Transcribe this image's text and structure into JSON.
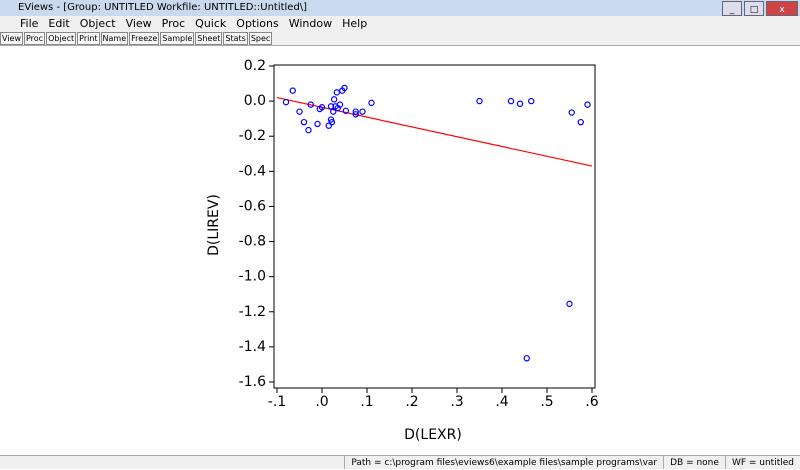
{
  "window": {
    "title": "EViews - [Group: UNTITLED   Workfile: UNTITLED::Untitled\\]"
  },
  "menu": [
    "File",
    "Edit",
    "Object",
    "View",
    "Proc",
    "Quick",
    "Options",
    "Window",
    "Help"
  ],
  "toolbar": [
    "View",
    "Proc",
    "Object",
    "Print",
    "Name",
    "Freeze",
    "Sample",
    "Sheet",
    "Stats",
    "Spec"
  ],
  "status": [
    "Path = c:\\program files\\eviews6\\example files\\sample programs\\var",
    "DB = none",
    "WF = untitled"
  ],
  "chart_data": {
    "type": "scatter",
    "x_label": "D(LEXR)",
    "y_label": "D(LIREV)",
    "xlim": [
      -0.1,
      0.6
    ],
    "ylim": [
      -1.6,
      0.2
    ],
    "xticks": [
      {
        "value": -0.1,
        "label": "-.1"
      },
      {
        "value": 0,
        "label": ".0"
      },
      {
        "value": 0.1,
        "label": ".1"
      },
      {
        "value": 0.2,
        "label": ".2"
      },
      {
        "value": 0.3,
        "label": ".3"
      },
      {
        "value": 0.4,
        "label": ".4"
      },
      {
        "value": 0.5,
        "label": ".5"
      },
      {
        "value": 0.6,
        "label": ".6"
      }
    ],
    "yticks": [
      0.2,
      {
        "value": 0,
        "label": "0.0"
      },
      -0.2,
      -0.4,
      -0.6,
      -0.8,
      {
        "value": -1,
        "label": "-1.0"
      },
      -1.2,
      -1.4,
      -1.6
    ],
    "points": {
      "color": "#0000ff",
      "x": [
        -0.08,
        -0.065,
        -0.05,
        -0.04,
        -0.03,
        -0.025,
        -0.01,
        -0.005,
        0.0,
        0.015,
        0.02,
        0.02,
        0.022,
        0.025,
        0.027,
        0.03,
        0.033,
        0.035,
        0.04,
        0.045,
        0.05,
        0.053,
        0.075,
        0.075,
        0.09,
        0.11,
        0.35,
        0.42,
        0.44,
        0.465,
        0.455,
        0.55,
        0.555,
        0.575,
        0.59
      ],
      "y": [
        -0.006,
        0.06,
        -0.06,
        -0.12,
        -0.165,
        -0.02,
        -0.13,
        -0.045,
        -0.035,
        -0.14,
        -0.03,
        -0.105,
        -0.12,
        -0.06,
        0.01,
        -0.03,
        0.05,
        -0.04,
        -0.02,
        0.06,
        0.075,
        -0.055,
        -0.06,
        -0.075,
        -0.06,
        -0.01,
        0.0,
        0.0,
        -0.015,
        0.0,
        -1.465,
        -1.155,
        -0.065,
        -0.12,
        -0.02
      ]
    },
    "fit": {
      "color": "#ff0000",
      "x": [
        -0.1,
        0.6
      ],
      "y": [
        0.02,
        -0.37
      ]
    }
  }
}
